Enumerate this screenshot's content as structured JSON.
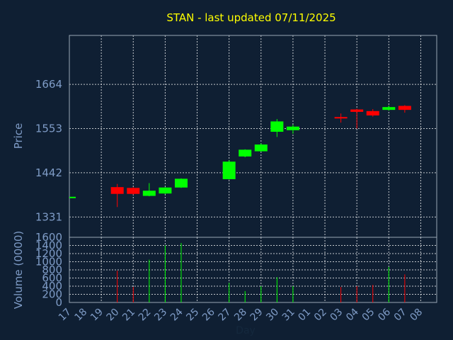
{
  "chart_data": {
    "type": "candlestick",
    "title": "STAN - last updated 07/11/2025",
    "price_axis": {
      "ylabel": "Price",
      "ticks": [
        1331,
        1442,
        1553,
        1664
      ],
      "ylim": [
        1280,
        1787
      ]
    },
    "volume_axis": {
      "ylabel": "Volume (0000)",
      "ticks": [
        0,
        200,
        400,
        600,
        800,
        1000,
        1200,
        1400,
        1600
      ],
      "ylim": [
        0,
        1600
      ]
    },
    "xlabel": "Day",
    "x_ticks": [
      "17",
      "18",
      "19",
      "20",
      "21",
      "22",
      "23",
      "24",
      "25",
      "26",
      "27",
      "28",
      "29",
      "30",
      "31",
      "01",
      "02",
      "03",
      "04",
      "05",
      "06",
      "07",
      "08"
    ],
    "grid": true,
    "colors": {
      "up": "#00ff00",
      "down": "#ff0000",
      "title": "#ffff00",
      "label": "#7f9cc7",
      "background": "#0f1f33"
    },
    "candles": [
      {
        "day": "16",
        "open": 1380,
        "high": 1380,
        "low": 1380,
        "close": 1380,
        "volume": 0
      },
      {
        "day": "20",
        "open": 1406,
        "high": 1414,
        "low": 1356,
        "close": 1389,
        "volume": 780
      },
      {
        "day": "21",
        "open": 1404,
        "high": 1406,
        "low": 1387,
        "close": 1389,
        "volume": 380
      },
      {
        "day": "22",
        "open": 1384,
        "high": 1416,
        "low": 1383,
        "close": 1397,
        "volume": 1050
      },
      {
        "day": "23",
        "open": 1390,
        "high": 1406,
        "low": 1388,
        "close": 1405,
        "volume": 1400
      },
      {
        "day": "24",
        "open": 1405,
        "high": 1428,
        "low": 1404,
        "close": 1427,
        "volume": 1460
      },
      {
        "day": "27",
        "open": 1426,
        "high": 1474,
        "low": 1425,
        "close": 1470,
        "volume": 480
      },
      {
        "day": "28",
        "open": 1483,
        "high": 1501,
        "low": 1481,
        "close": 1500,
        "volume": 280
      },
      {
        "day": "29",
        "open": 1496,
        "high": 1516,
        "low": 1495,
        "close": 1513,
        "volume": 400
      },
      {
        "day": "30",
        "open": 1545,
        "high": 1577,
        "low": 1532,
        "close": 1571,
        "volume": 620
      },
      {
        "day": "31",
        "open": 1549,
        "high": 1563,
        "low": 1540,
        "close": 1558,
        "volume": 400
      },
      {
        "day": "03",
        "open": 1582,
        "high": 1591,
        "low": 1568,
        "close": 1580,
        "volume": 380
      },
      {
        "day": "04",
        "open": 1601,
        "high": 1603,
        "low": 1553,
        "close": 1595,
        "volume": 400
      },
      {
        "day": "05",
        "open": 1597,
        "high": 1602,
        "low": 1583,
        "close": 1586,
        "volume": 430
      },
      {
        "day": "06",
        "open": 1600,
        "high": 1611,
        "low": 1598,
        "close": 1607,
        "volume": 870
      },
      {
        "day": "07",
        "open": 1610,
        "high": 1612,
        "low": 1593,
        "close": 1600,
        "volume": 690
      }
    ]
  }
}
